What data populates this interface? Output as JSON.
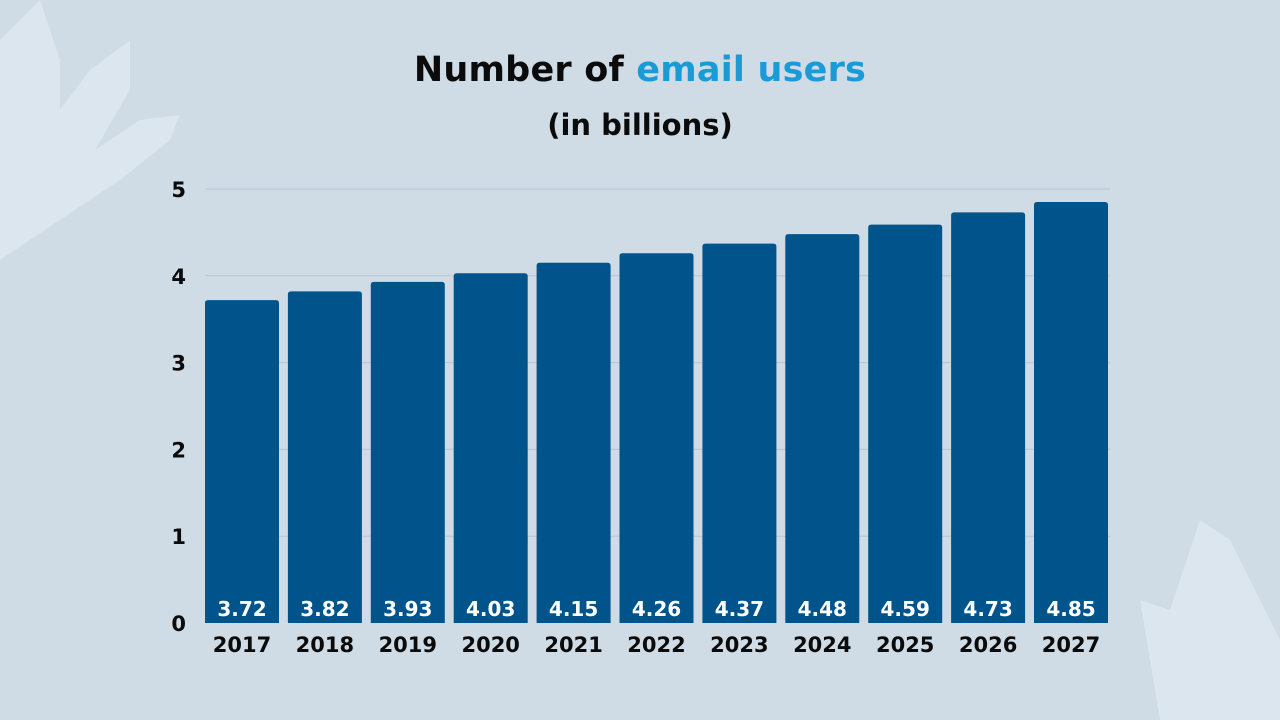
{
  "chart_data": {
    "type": "bar",
    "title_prefix": "Number of",
    "title_accent": "email users",
    "subtitle": "(in billions)",
    "categories": [
      "2017",
      "2018",
      "2019",
      "2020",
      "2021",
      "2022",
      "2023",
      "2024",
      "2025",
      "2026",
      "2027"
    ],
    "values": [
      3.72,
      3.82,
      3.93,
      4.03,
      4.15,
      4.26,
      4.37,
      4.48,
      4.59,
      4.73,
      4.85
    ],
    "ylim": [
      0,
      5
    ],
    "yticks": [
      0,
      1,
      2,
      3,
      4,
      5
    ],
    "grid": true,
    "data_labels": "inside-bottom",
    "colors": {
      "bar": "#00548c",
      "accent": "#1a9bd7",
      "background": "#cfdbe5",
      "label": "#ffffff",
      "grid": "#b8c6d2"
    }
  }
}
